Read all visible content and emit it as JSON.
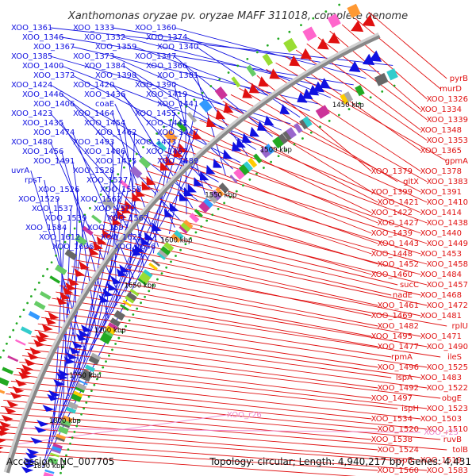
{
  "header": {
    "title": "Xanthomonas oryzae pv. oryzae MAFF 311018, complete genome"
  },
  "footer": {
    "accession": "Accession: NC_007705",
    "summary": "Topology: circular; Length: 4,940,217 bp; Genes: 4,431"
  },
  "colors": {
    "forward_strand": "#1010e0",
    "reverse_strand": "#e01010",
    "rna_gene": "#ee88cc",
    "backbone": "#888888",
    "tick_dot": "#22aa22"
  },
  "kbp_ticks": [
    "1450 kbp",
    "1500 kbp",
    "1550 kbp",
    "1600 kbp",
    "1650 kbp",
    "1700 kbp",
    "1750 kbp",
    "1800 kbp",
    "1850 kbp"
  ],
  "left_labels": [
    "XOO_1361",
    "XOO_1333",
    "XOO_1360",
    "XOO_1346",
    "XOO_1332",
    "XOO_1374",
    "XOO_1367",
    "XOO_1359",
    "XOO_1340",
    "XOO_1385",
    "XOO_1373",
    "XOO_1347",
    "XOO_1400",
    "XOO_1384",
    "XOO_1366",
    "XOO_1372",
    "XOO_1398",
    "XOO_1381",
    "XOO_1424",
    "XOO_1420",
    "XOO_1390",
    "XOO_1446",
    "XOO_1436",
    "XOO_1419",
    "XOO_1406",
    "coaE",
    "XOO_1441",
    "XOO_1423",
    "XOO_1464",
    "XOO_1455",
    "XOO_1435",
    "XOO_1454",
    "XOO_1442",
    "XOO_1474",
    "XOO_1462",
    "XOO_1447",
    "XOO_1480",
    "XOO_1493",
    "XOO_1473",
    "XOO_1456",
    "XOO_1486",
    "XOO_1467",
    "XOO_1491",
    "XOO_1475",
    "XOO_1489",
    "uvrA",
    "XOO_1528",
    "rpsT",
    "XOO_1527",
    "XOO_1526",
    "XOO_1558",
    "XOO_1529",
    "XOO_1562",
    "XOO_1537",
    "XOO_1570",
    "XOO_1539",
    "XOO_1567",
    "XOO_1584",
    "XOO_1597",
    "XOO_1612",
    "XOO_1623",
    "XOO_1636",
    "XOO_1646"
  ],
  "right_labels": [
    "pyrB",
    "murD",
    "XOO_1326",
    "XOO_1334",
    "XOO_1339",
    "XOO_1348",
    "XOO_1353",
    "XOO_1365",
    "gpmA",
    "XOO_1378",
    "XOO_1379",
    "XOO_1383",
    "gltX",
    "XOO_1391",
    "XOO_1399",
    "XOO_1410",
    "XOO_1421",
    "XOO_1414",
    "XOO_1422",
    "XOO_1438",
    "XOO_1427",
    "XOO_1440",
    "XOO_1439",
    "XOO_1449",
    "XOO_1443",
    "XOO_1453",
    "XOO_1448",
    "XOO_1458",
    "XOO_1452",
    "XOO_1484",
    "XOO_1460",
    "XOO_1457",
    "sucC",
    "XOO_1468",
    "nadE",
    "XOO_1472",
    "XOO_1461",
    "XOO_1481",
    "XOO_1469",
    "rplU",
    "XOO_1482",
    "XOO_1471",
    "XOO_1495",
    "XOO_1490",
    "XOO_1477",
    "ileS",
    "rpmA",
    "XOO_1525",
    "XOO_1496",
    "XOO_1483",
    "lspA",
    "XOO_1522",
    "XOO_1492",
    "obgE",
    "XOO_1497",
    "XOO_1523",
    "ispH",
    "XOO_1503",
    "XOO_1534",
    "XOO_1510",
    "XOO_1520",
    "ruvB",
    "XOO_1538",
    "tolB",
    "XOO_1524",
    "XOO_1519",
    "aspS",
    "XOO_1583",
    "XOO_1560",
    "XOO_1541"
  ],
  "rna_labels": [
    "XOO_r26",
    "XOO_r25"
  ]
}
